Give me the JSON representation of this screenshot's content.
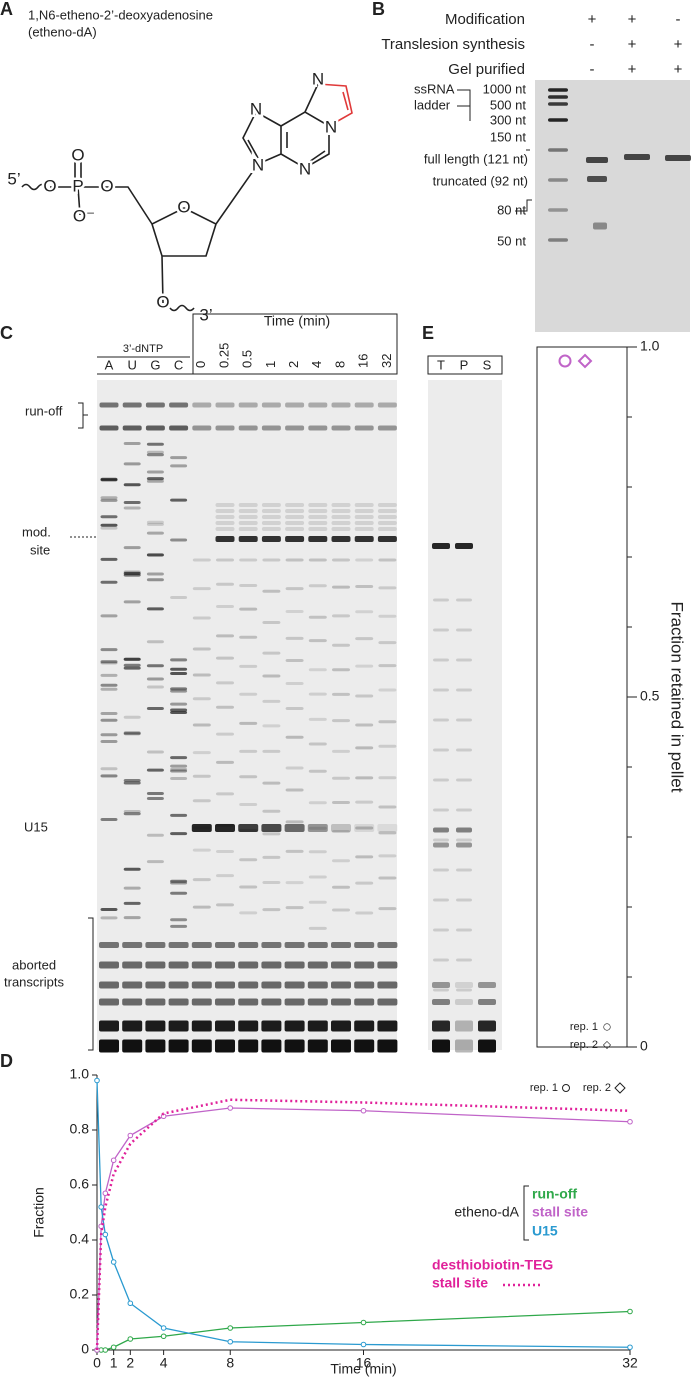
{
  "panel_labels": [
    "A",
    "B",
    "C",
    "D",
    "E"
  ],
  "panel_a": {
    "title": "1,N6-etheno-2’-deoxyadenosine",
    "subtitle": "(etheno-dA)",
    "atoms": [
      "N",
      "N",
      "N",
      "N",
      "N",
      "O",
      "O",
      "P",
      "O",
      "O⁻",
      "O",
      "O"
    ],
    "ends": [
      "5’",
      "3’"
    ]
  },
  "panel_b": {
    "conditions": [
      {
        "label": "Modification",
        "lanes": [
          "+",
          "+",
          "-"
        ]
      },
      {
        "label": "Translesion synthesis",
        "lanes": [
          "-",
          "+",
          "+"
        ]
      },
      {
        "label": "Gel purified",
        "lanes": [
          "-",
          "+",
          "+"
        ]
      }
    ],
    "ladder_title": [
      "ssRNA",
      "ladder"
    ],
    "ladder": [
      "1000 nt",
      "500 nt",
      "300 nt",
      "150 nt",
      "80 nt",
      "50 nt"
    ],
    "bands": [
      "full length (121 nt)",
      "truncated (92 nt)"
    ]
  },
  "panel_c": {
    "dntp_label": "3’-dNTP",
    "dntp_lanes": [
      "A",
      "U",
      "G",
      "C"
    ],
    "time_label": "Time (min)",
    "times": [
      "0",
      "0.25",
      "0.5",
      "1",
      "2",
      "4",
      "8",
      "16",
      "32"
    ],
    "annotations": {
      "run_off": "run-off",
      "mod_site": [
        "mod.",
        "site"
      ],
      "u15": "U15",
      "aborted": [
        "aborted",
        "transcripts"
      ]
    }
  },
  "panel_e": {
    "lanes": [
      "T",
      "P",
      "S"
    ]
  },
  "chart_data": [
    {
      "type": "dot",
      "ylabel": "Fraction retained in pellet",
      "ylim": [
        0,
        1
      ],
      "yticks": [
        0,
        0.5,
        {
          "value": 1,
          "label": "1.0"
        }
      ],
      "yminorticks": [
        0.1,
        0.2,
        0.3,
        0.4,
        0.6,
        0.7,
        0.8,
        0.9
      ],
      "color": "#c064c8",
      "series": [
        {
          "name": "rep. 1",
          "marker": "circle",
          "values": [
            0.98
          ]
        },
        {
          "name": "rep. 2",
          "marker": "diamond",
          "values": [
            0.98
          ]
        }
      ]
    },
    {
      "type": "line",
      "xlabel": "Time (min)",
      "ylabel": "Fraction",
      "x": [
        0,
        0.25,
        0.5,
        1,
        2,
        4,
        8,
        16,
        32
      ],
      "xlim": [
        0,
        32
      ],
      "xticks": [
        0,
        1,
        2,
        4,
        8,
        16,
        32
      ],
      "ylim": [
        0,
        1
      ],
      "yticks": [
        0,
        0.2,
        0.4,
        0.6,
        0.8,
        {
          "value": 1,
          "label": "1.0"
        }
      ],
      "legend_groups": [
        "etheno-dA",
        "desthiobiotin-TEG"
      ],
      "marker_legend": [
        "rep. 1",
        "rep. 2"
      ],
      "series": [
        {
          "name": "run-off",
          "color": "#2fa84a",
          "style": "solid",
          "markers": true,
          "values": [
            0,
            0,
            0,
            0.01,
            0.04,
            0.05,
            0.08,
            0.1,
            0.14
          ]
        },
        {
          "name": "stall site",
          "color": "#c064c8",
          "style": "solid",
          "markers": true,
          "values": [
            0,
            0.45,
            0.57,
            0.69,
            0.78,
            0.85,
            0.88,
            0.87,
            0.83
          ]
        },
        {
          "name": "U15",
          "color": "#2a9ad0",
          "style": "solid",
          "markers": true,
          "values": [
            0.98,
            0.52,
            0.42,
            0.32,
            0.17,
            0.08,
            0.03,
            0.02,
            0.01
          ]
        },
        {
          "name": "stall site",
          "color": "#e0219a",
          "style": "dotted",
          "markers": false,
          "values": [
            0,
            0.42,
            0.52,
            0.64,
            0.75,
            0.86,
            0.91,
            0.9,
            0.87
          ]
        }
      ]
    }
  ]
}
